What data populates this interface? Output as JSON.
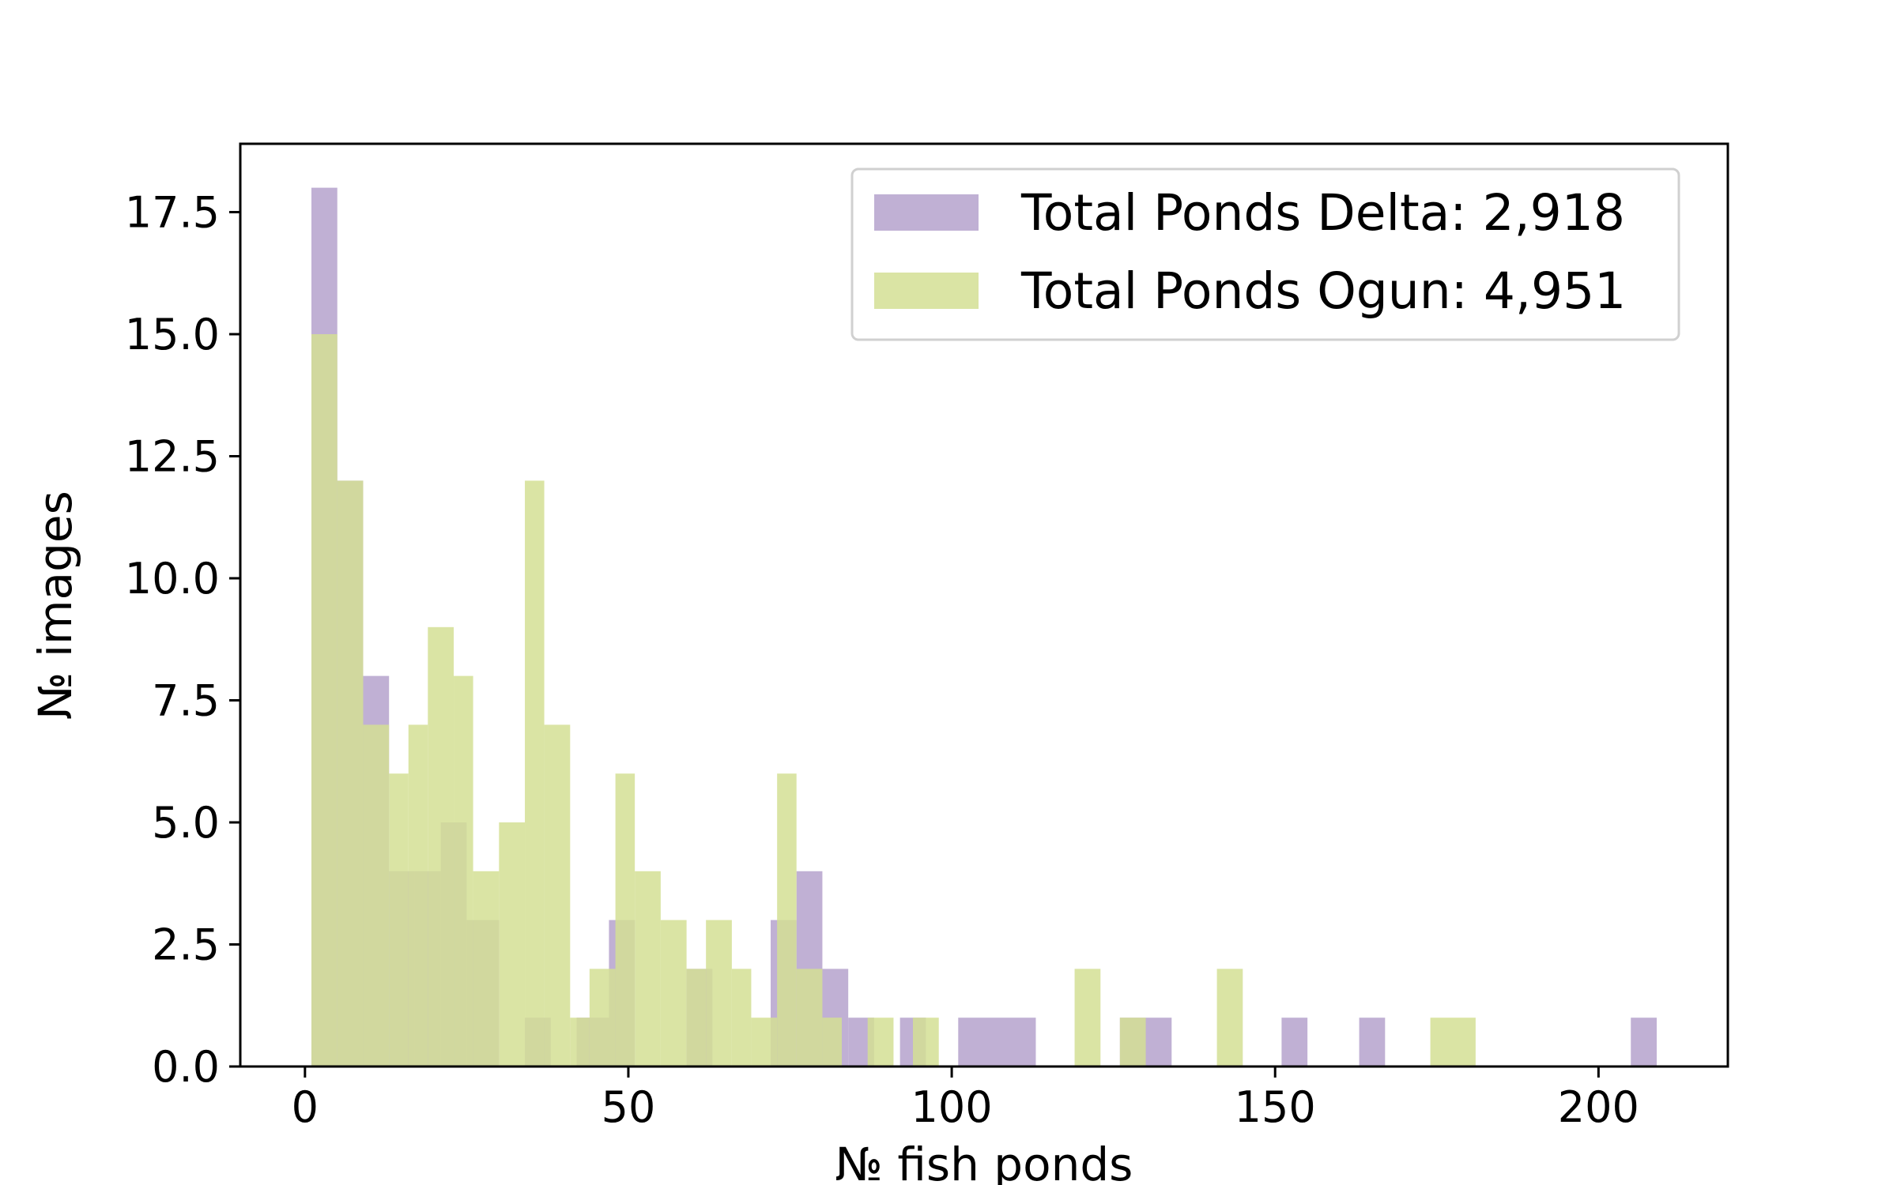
{
  "chart_data": {
    "type": "bar",
    "subtype": "histogram",
    "title": "",
    "xlabel": "№ fish ponds",
    "ylabel": "№ images",
    "xlim": [
      -10,
      220
    ],
    "ylim": [
      0,
      18.9
    ],
    "xticks": [
      0,
      50,
      100,
      150,
      200
    ],
    "xtick_labels": [
      "0",
      "50",
      "100",
      "150",
      "200"
    ],
    "yticks": [
      0,
      2.5,
      5,
      7.5,
      10,
      12.5,
      15,
      17.5
    ],
    "ytick_labels": [
      "0.0",
      "2.5",
      "5.0",
      "7.5",
      "10.0",
      "12.5",
      "15.0",
      "17.5"
    ],
    "grid": false,
    "legend_position": "upper-right",
    "series": [
      {
        "name": "Total Ponds Delta: 2,918",
        "color": "#b5a2cd",
        "opacity": 0.85,
        "bins": [
          {
            "x0": 1,
            "x1": 5,
            "count": 18
          },
          {
            "x0": 5,
            "x1": 9,
            "count": 12
          },
          {
            "x0": 9,
            "x1": 13,
            "count": 8
          },
          {
            "x0": 13,
            "x1": 17,
            "count": 4
          },
          {
            "x0": 17,
            "x1": 21,
            "count": 4
          },
          {
            "x0": 21,
            "x1": 25,
            "count": 5
          },
          {
            "x0": 25,
            "x1": 30,
            "count": 3
          },
          {
            "x0": 34,
            "x1": 38,
            "count": 1
          },
          {
            "x0": 42,
            "x1": 47,
            "count": 1
          },
          {
            "x0": 47,
            "x1": 51,
            "count": 3
          },
          {
            "x0": 59,
            "x1": 63,
            "count": 2
          },
          {
            "x0": 72,
            "x1": 76,
            "count": 3
          },
          {
            "x0": 76,
            "x1": 80,
            "count": 4
          },
          {
            "x0": 80,
            "x1": 84,
            "count": 2
          },
          {
            "x0": 84,
            "x1": 88,
            "count": 1
          },
          {
            "x0": 92,
            "x1": 96,
            "count": 1
          },
          {
            "x0": 101,
            "x1": 113,
            "count": 1
          },
          {
            "x0": 126,
            "x1": 134,
            "count": 1
          },
          {
            "x0": 151,
            "x1": 155,
            "count": 1
          },
          {
            "x0": 163,
            "x1": 167,
            "count": 1
          },
          {
            "x0": 205,
            "x1": 209,
            "count": 1
          }
        ]
      },
      {
        "name": "Total Ponds Ogun: 4,951",
        "color": "#d3df94",
        "opacity": 0.85,
        "bins": [
          {
            "x0": 1,
            "x1": 5,
            "count": 15
          },
          {
            "x0": 5,
            "x1": 9,
            "count": 12
          },
          {
            "x0": 9,
            "x1": 13,
            "count": 7
          },
          {
            "x0": 13,
            "x1": 16,
            "count": 6
          },
          {
            "x0": 16,
            "x1": 19,
            "count": 7
          },
          {
            "x0": 19,
            "x1": 23,
            "count": 9
          },
          {
            "x0": 23,
            "x1": 26,
            "count": 8
          },
          {
            "x0": 26,
            "x1": 30,
            "count": 4
          },
          {
            "x0": 30,
            "x1": 34,
            "count": 5
          },
          {
            "x0": 34,
            "x1": 37,
            "count": 12
          },
          {
            "x0": 37,
            "x1": 41,
            "count": 7
          },
          {
            "x0": 41,
            "x1": 44,
            "count": 1
          },
          {
            "x0": 44,
            "x1": 48,
            "count": 2
          },
          {
            "x0": 48,
            "x1": 51,
            "count": 6
          },
          {
            "x0": 51,
            "x1": 55,
            "count": 4
          },
          {
            "x0": 55,
            "x1": 59,
            "count": 3
          },
          {
            "x0": 59,
            "x1": 62,
            "count": 2
          },
          {
            "x0": 62,
            "x1": 66,
            "count": 3
          },
          {
            "x0": 66,
            "x1": 69,
            "count": 2
          },
          {
            "x0": 69,
            "x1": 73,
            "count": 1
          },
          {
            "x0": 73,
            "x1": 76,
            "count": 6
          },
          {
            "x0": 76,
            "x1": 80,
            "count": 2
          },
          {
            "x0": 80,
            "x1": 83,
            "count": 1
          },
          {
            "x0": 87,
            "x1": 91,
            "count": 1
          },
          {
            "x0": 94,
            "x1": 98,
            "count": 1
          },
          {
            "x0": 119,
            "x1": 123,
            "count": 2
          },
          {
            "x0": 126,
            "x1": 130,
            "count": 1
          },
          {
            "x0": 141,
            "x1": 145,
            "count": 2
          },
          {
            "x0": 174,
            "x1": 181,
            "count": 1
          }
        ]
      }
    ]
  }
}
